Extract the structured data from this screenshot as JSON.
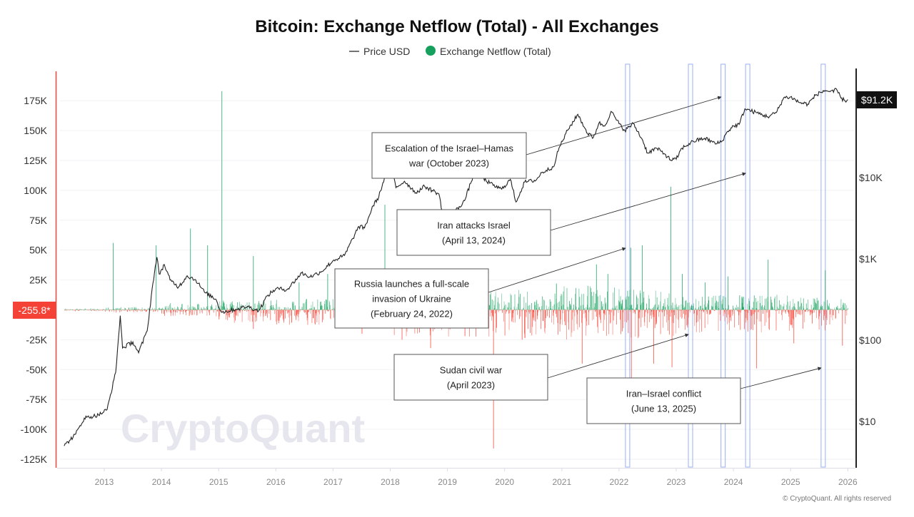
{
  "chart_data": {
    "type": "bar+line",
    "title": "Bitcoin: Exchange Netflow (Total) - All Exchanges",
    "legend": {
      "placement": "top-center",
      "entries": [
        {
          "label": "Price USD",
          "marker": "line",
          "color": "#222222"
        },
        {
          "label": "Exchange Netflow (Total)",
          "marker": "dot",
          "color": "#16a05d"
        }
      ]
    },
    "watermark": "CryptoQuant",
    "copyright": "© CryptoQuant. All rights reserved",
    "grid": true,
    "x_axis": {
      "type": "date",
      "range": [
        2012.3,
        2026.05
      ],
      "ticks": [
        "2013",
        "2014",
        "2015",
        "2016",
        "2017",
        "2018",
        "2019",
        "2020",
        "2021",
        "2022",
        "2023",
        "2024",
        "2025",
        "2026"
      ]
    },
    "left_axis": {
      "series": "Exchange Netflow (Total)",
      "range": [
        -130000,
        195000
      ],
      "ticks": [
        {
          "v": 175000,
          "l": "175K"
        },
        {
          "v": 150000,
          "l": "150K"
        },
        {
          "v": 125000,
          "l": "125K"
        },
        {
          "v": 100000,
          "l": "100K"
        },
        {
          "v": 75000,
          "l": "75K"
        },
        {
          "v": 50000,
          "l": "50K"
        },
        {
          "v": 25000,
          "l": "25K"
        },
        {
          "v": -25000,
          "l": "-25K"
        },
        {
          "v": -50000,
          "l": "-50K"
        },
        {
          "v": -75000,
          "l": "-75K"
        },
        {
          "v": -100000,
          "l": "-100K"
        },
        {
          "v": -125000,
          "l": "-125K"
        }
      ],
      "current_label": "-255.8*",
      "color": "#f44336"
    },
    "right_axis": {
      "series": "Price USD",
      "scale": "log",
      "range": [
        3.2,
        180000
      ],
      "ticks": [
        {
          "v": 10000,
          "l": "$10K"
        },
        {
          "v": 1000,
          "l": "$1K"
        },
        {
          "v": 100,
          "l": "$100"
        },
        {
          "v": 10,
          "l": "$10"
        }
      ],
      "current_label": "$91.2K"
    },
    "colors": {
      "inflow": "#16a05d",
      "outflow": "#f44336",
      "price": "#222222",
      "band": "#7f9cf5",
      "axis_left": "#f44336"
    },
    "price": [
      [
        2012.3,
        5
      ],
      [
        2012.5,
        7
      ],
      [
        2012.65,
        11
      ],
      [
        2012.9,
        12
      ],
      [
        2013.05,
        14
      ],
      [
        2013.2,
        40
      ],
      [
        2013.28,
        200
      ],
      [
        2013.32,
        80
      ],
      [
        2013.5,
        95
      ],
      [
        2013.6,
        70
      ],
      [
        2013.75,
        130
      ],
      [
        2013.85,
        500
      ],
      [
        2013.92,
        1050
      ],
      [
        2013.96,
        650
      ],
      [
        2014.05,
        850
      ],
      [
        2014.15,
        550
      ],
      [
        2014.3,
        450
      ],
      [
        2014.45,
        620
      ],
      [
        2014.6,
        550
      ],
      [
        2014.75,
        390
      ],
      [
        2014.95,
        320
      ],
      [
        2015.05,
        220
      ],
      [
        2015.3,
        240
      ],
      [
        2015.5,
        260
      ],
      [
        2015.7,
        230
      ],
      [
        2015.85,
        350
      ],
      [
        2016.0,
        430
      ],
      [
        2016.2,
        420
      ],
      [
        2016.45,
        670
      ],
      [
        2016.6,
        600
      ],
      [
        2016.8,
        700
      ],
      [
        2017.0,
        950
      ],
      [
        2017.2,
        1100
      ],
      [
        2017.45,
        2500
      ],
      [
        2017.55,
        2400
      ],
      [
        2017.7,
        4500
      ],
      [
        2017.8,
        5800
      ],
      [
        2017.9,
        10000
      ],
      [
        2017.96,
        19000
      ],
      [
        2018.05,
        11000
      ],
      [
        2018.1,
        7500
      ],
      [
        2018.25,
        9000
      ],
      [
        2018.45,
        6500
      ],
      [
        2018.6,
        7800
      ],
      [
        2018.85,
        6300
      ],
      [
        2018.92,
        3500
      ],
      [
        2019.1,
        3600
      ],
      [
        2019.3,
        5200
      ],
      [
        2019.48,
        12000
      ],
      [
        2019.6,
        10000
      ],
      [
        2019.8,
        8000
      ],
      [
        2019.95,
        7200
      ],
      [
        2020.1,
        9500
      ],
      [
        2020.2,
        5000
      ],
      [
        2020.35,
        8800
      ],
      [
        2020.55,
        9300
      ],
      [
        2020.65,
        11500
      ],
      [
        2020.85,
        13500
      ],
      [
        2020.95,
        23000
      ],
      [
        2021.1,
        38000
      ],
      [
        2021.28,
        60000
      ],
      [
        2021.45,
        35000
      ],
      [
        2021.55,
        31000
      ],
      [
        2021.65,
        47000
      ],
      [
        2021.75,
        43000
      ],
      [
        2021.86,
        65000
      ],
      [
        2022.0,
        46000
      ],
      [
        2022.1,
        38000
      ],
      [
        2022.25,
        46000
      ],
      [
        2022.4,
        30000
      ],
      [
        2022.5,
        20000
      ],
      [
        2022.65,
        23000
      ],
      [
        2022.8,
        19500
      ],
      [
        2022.9,
        16500
      ],
      [
        2023.0,
        16800
      ],
      [
        2023.1,
        23000
      ],
      [
        2023.3,
        28000
      ],
      [
        2023.5,
        30500
      ],
      [
        2023.7,
        26000
      ],
      [
        2023.8,
        28000
      ],
      [
        2023.9,
        37000
      ],
      [
        2024.0,
        43000
      ],
      [
        2024.1,
        45000
      ],
      [
        2024.2,
        70000
      ],
      [
        2024.4,
        63000
      ],
      [
        2024.6,
        56000
      ],
      [
        2024.75,
        63000
      ],
      [
        2024.88,
        96000
      ],
      [
        2025.0,
        98000
      ],
      [
        2025.15,
        84000
      ],
      [
        2025.3,
        80000
      ],
      [
        2025.45,
        105000
      ],
      [
        2025.6,
        118000
      ],
      [
        2025.75,
        112000
      ],
      [
        2025.8,
        123000
      ],
      [
        2025.88,
        95000
      ],
      [
        2025.95,
        88000
      ],
      [
        2026.0,
        91200
      ]
    ],
    "netflow_spikes": [
      [
        2013.15,
        56000
      ],
      [
        2013.9,
        54000
      ],
      [
        2014.0,
        -3000
      ],
      [
        2014.5,
        68000
      ],
      [
        2014.8,
        54000
      ],
      [
        2015.05,
        183000
      ],
      [
        2015.0,
        -8000
      ],
      [
        2015.6,
        45000
      ],
      [
        2015.6,
        -16000
      ],
      [
        2016.4,
        23000
      ],
      [
        2016.9,
        30000
      ],
      [
        2017.6,
        30000
      ],
      [
        2017.9,
        88000
      ],
      [
        2017.5,
        -20000
      ],
      [
        2018.2,
        -25000
      ],
      [
        2018.7,
        -32000
      ],
      [
        2019.3,
        -22000
      ],
      [
        2019.8,
        -116000
      ],
      [
        2020.3,
        -25000
      ],
      [
        2020.9,
        22000
      ],
      [
        2021.35,
        -45000
      ],
      [
        2021.6,
        38000
      ],
      [
        2021.8,
        30000
      ],
      [
        2022.05,
        -18000
      ],
      [
        2022.2,
        52000
      ],
      [
        2022.21,
        -57000
      ],
      [
        2022.4,
        54000
      ],
      [
        2022.6,
        -45000
      ],
      [
        2022.9,
        103000
      ],
      [
        2022.92,
        -48000
      ],
      [
        2023.1,
        30000
      ],
      [
        2023.5,
        23000
      ],
      [
        2023.9,
        28000
      ],
      [
        2024.4,
        -49000
      ],
      [
        2024.6,
        42000
      ],
      [
        2025.05,
        -28000
      ],
      [
        2025.6,
        33000
      ],
      [
        2025.9,
        -30000
      ]
    ],
    "netflow_typical_range": [
      [
        2012,
        800,
        800
      ],
      [
        2013,
        1500,
        1500
      ],
      [
        2014,
        3500,
        3500
      ],
      [
        2015,
        5000,
        7000
      ],
      [
        2016,
        6000,
        8000
      ],
      [
        2017,
        9000,
        10000
      ],
      [
        2018,
        9000,
        14000
      ],
      [
        2019,
        10000,
        14000
      ],
      [
        2020,
        11000,
        15000
      ],
      [
        2021,
        13000,
        16000
      ],
      [
        2022,
        11000,
        16000
      ],
      [
        2023,
        8000,
        12000
      ],
      [
        2024,
        8000,
        12000
      ],
      [
        2025,
        7000,
        11000
      ]
    ],
    "highlighted_events": [
      2022.15,
      2023.25,
      2023.82,
      2024.25,
      2025.57
    ],
    "annotations": [
      {
        "lines": [
          "Escalation of the Israel–Hamas",
          "war (October 2023)"
        ],
        "target": 2023.82
      },
      {
        "lines": [
          "Iran attacks Israel",
          "(April 13, 2024)"
        ],
        "target": 2024.25
      },
      {
        "lines": [
          "Russia launches a full-scale",
          "invasion of Ukraine",
          "(February 24, 2022)"
        ],
        "target": 2022.15
      },
      {
        "lines": [
          "Sudan civil war",
          "(April 2023)"
        ],
        "target": 2023.25
      },
      {
        "lines": [
          "Iran–Israel conflict",
          "(June 13, 2025)"
        ],
        "target": 2025.57
      }
    ]
  }
}
